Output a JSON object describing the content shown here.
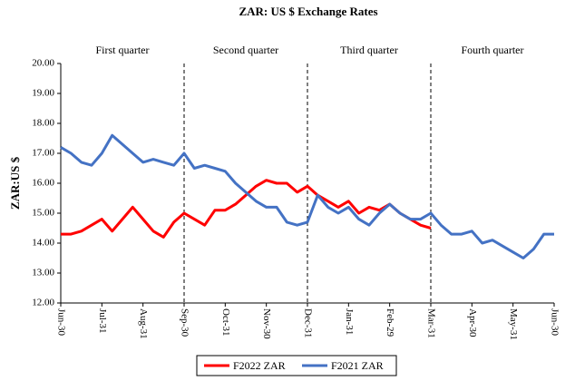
{
  "chart_data": {
    "type": "line",
    "title": "ZAR: US $ Exchange Rates",
    "y_label": "ZAR:US $",
    "quarters": [
      "First quarter",
      "Second quarter",
      "Third quarter",
      "Fourth quarter"
    ],
    "categories": [
      "Jun-30",
      null,
      null,
      null,
      "Jul-31",
      null,
      null,
      null,
      "Aug-31",
      null,
      null,
      null,
      "Sep-30",
      null,
      null,
      null,
      "Oct-31",
      null,
      null,
      null,
      "Nov-30",
      null,
      null,
      null,
      "Dec-31",
      null,
      null,
      null,
      "Jan-31",
      null,
      null,
      null,
      "Feb-29",
      null,
      null,
      null,
      "Mar-31",
      null,
      null,
      null,
      "Apr-30",
      null,
      null,
      null,
      "May-31",
      null,
      null,
      null,
      "Jun-30"
    ],
    "series": [
      {
        "name": "F2022 ZAR",
        "color": "#ff0000",
        "values": [
          14.3,
          14.3,
          14.4,
          14.6,
          14.8,
          14.4,
          14.8,
          15.2,
          14.8,
          14.4,
          14.2,
          14.7,
          15.0,
          14.8,
          14.6,
          15.1,
          15.1,
          15.3,
          15.6,
          15.9,
          16.1,
          16.0,
          16.0,
          15.7,
          15.9,
          15.6,
          15.4,
          15.2,
          15.4,
          15.0,
          15.2,
          15.1,
          15.3,
          15.0,
          14.8,
          14.6,
          14.5,
          null,
          null,
          null,
          null,
          null,
          null,
          null,
          null,
          null,
          null,
          null,
          null
        ]
      },
      {
        "name": "F2021 ZAR",
        "color": "#4472c4",
        "values": [
          17.2,
          17.0,
          16.7,
          16.6,
          17.0,
          17.6,
          17.3,
          17.0,
          16.7,
          16.8,
          16.7,
          16.6,
          17.0,
          16.5,
          16.6,
          16.5,
          16.4,
          16.0,
          15.7,
          15.4,
          15.2,
          15.2,
          14.7,
          14.6,
          14.7,
          15.6,
          15.2,
          15.0,
          15.2,
          14.8,
          14.6,
          15.0,
          15.3,
          15.0,
          14.8,
          14.8,
          15.0,
          14.6,
          14.3,
          14.3,
          14.4,
          14.0,
          14.1,
          13.9,
          13.7,
          13.5,
          13.8,
          14.3,
          14.3
        ]
      }
    ],
    "ylim": [
      12,
      20
    ],
    "yticks": [
      {
        "value": 12,
        "label": "12.00"
      },
      {
        "value": 13,
        "label": "13.00"
      },
      {
        "value": 14,
        "label": "14.00"
      },
      {
        "value": 15,
        "label": "15.00"
      },
      {
        "value": 16,
        "label": "16.00"
      },
      {
        "value": 17,
        "label": "17.00"
      },
      {
        "value": 18,
        "label": "18.00"
      },
      {
        "value": 19,
        "label": "19.00"
      },
      {
        "value": 20,
        "label": "20.00"
      }
    ],
    "grid": false,
    "legend": "bottom"
  }
}
